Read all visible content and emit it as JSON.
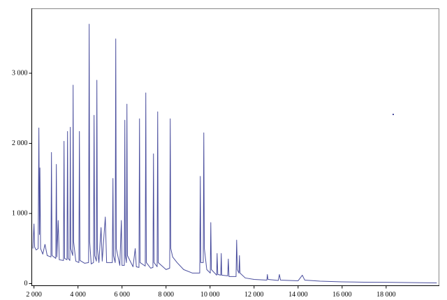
{
  "chart_data": {
    "type": "line",
    "xlim": [
      1900,
      20400
    ],
    "ylim": [
      -30,
      3920
    ],
    "xticks": [
      {
        "value": 2000,
        "label": "2 000"
      },
      {
        "value": 4000,
        "label": "4 000"
      },
      {
        "value": 6000,
        "label": "6 000"
      },
      {
        "value": 8000,
        "label": "8 000"
      },
      {
        "value": 10000,
        "label": "10 000"
      },
      {
        "value": 12000,
        "label": "12 000"
      },
      {
        "value": 14000,
        "label": "14 000"
      },
      {
        "value": 16000,
        "label": "16 000"
      },
      {
        "value": 18000,
        "label": "18 000"
      }
    ],
    "yticks": [
      0,
      {
        "value": 1000,
        "label": "1 000"
      },
      {
        "value": 2000,
        "label": "2 000"
      },
      {
        "value": 3000,
        "label": "3 000"
      }
    ],
    "series": [
      {
        "color": "#4b4f9e",
        "x": [
          1950,
          2000,
          2030,
          2100,
          2190,
          2222,
          2250,
          2270,
          2300,
          2400,
          2500,
          2600,
          2770,
          2794,
          2820,
          2990,
          3016,
          3040,
          3100,
          3150,
          3340,
          3365,
          3390,
          3500,
          3524,
          3550,
          3630,
          3651,
          3670,
          3760,
          3778,
          3800,
          3900,
          4040,
          4064,
          4090,
          4300,
          4480,
          4508,
          4530,
          4600,
          4705,
          4730,
          4760,
          4835,
          4857,
          4880,
          4950,
          5048,
          5100,
          5240,
          5300,
          5560,
          5588,
          5610,
          5690,
          5715,
          5740,
          5900,
          5970,
          6000,
          6105,
          6128,
          6150,
          6200,
          6223,
          6245,
          6500,
          6600,
          6650,
          6770,
          6794,
          6820,
          7055,
          7080,
          7105,
          7300,
          7405,
          7429,
          7455,
          7595,
          7620,
          7645,
          8000,
          8165,
          8191,
          8215,
          8300,
          8500,
          8800,
          9200,
          9530,
          9557,
          9580,
          9690,
          9715,
          9740,
          9850,
          10010,
          10033,
          10060,
          10300,
          10320,
          10350,
          10485,
          10509,
          10530,
          10800,
          10830,
          10860,
          11180,
          11207,
          11240,
          11310,
          11334,
          11360,
          11600,
          12000,
          12580,
          12604,
          12630,
          13100,
          13150,
          13200,
          14000,
          14192,
          14300,
          15000,
          16000,
          17000,
          18000,
          19000,
          20300
        ],
        "values": [
          500,
          850,
          520,
          480,
          500,
          2220,
          700,
          1650,
          500,
          420,
          560,
          400,
          380,
          1870,
          400,
          360,
          1700,
          380,
          900,
          340,
          330,
          2030,
          360,
          340,
          2170,
          360,
          330,
          2230,
          500,
          400,
          2830,
          600,
          320,
          300,
          2170,
          330,
          290,
          300,
          3700,
          600,
          280,
          300,
          2400,
          400,
          320,
          2900,
          500,
          300,
          800,
          320,
          950,
          300,
          300,
          1500,
          400,
          300,
          3490,
          500,
          260,
          900,
          260,
          260,
          2330,
          400,
          300,
          2560,
          400,
          240,
          500,
          240,
          230,
          2350,
          300,
          250,
          2720,
          300,
          220,
          230,
          1850,
          300,
          240,
          2450,
          300,
          200,
          220,
          2350,
          500,
          380,
          300,
          200,
          150,
          150,
          1530,
          300,
          300,
          2150,
          500,
          200,
          150,
          870,
          200,
          120,
          430,
          130,
          120,
          430,
          120,
          110,
          350,
          100,
          100,
          620,
          200,
          150,
          400,
          150,
          80,
          60,
          50,
          130,
          60,
          45,
          130,
          50,
          40,
          120,
          50,
          35,
          25,
          20,
          18,
          15,
          10
        ]
      }
    ]
  }
}
